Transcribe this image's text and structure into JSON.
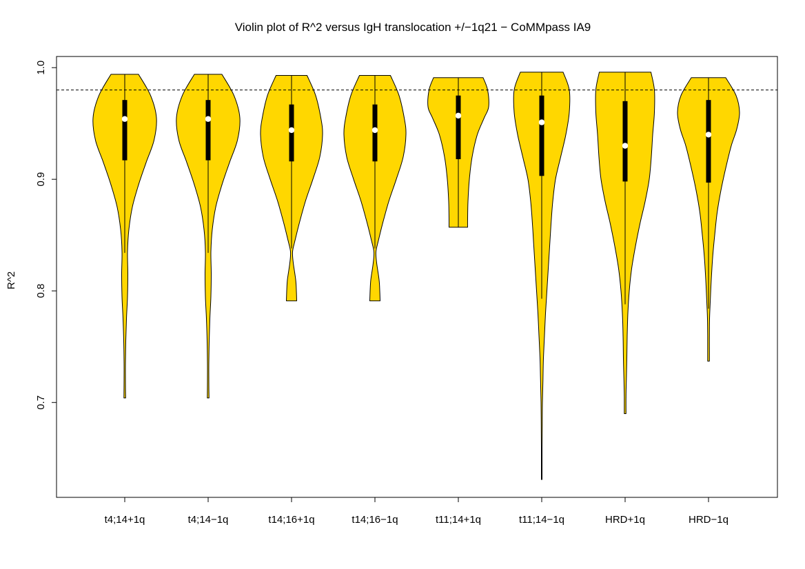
{
  "chart_data": {
    "type": "violin",
    "title": "Violin plot of R^2 versus IgH translocation +/−1q21 − CoMMpass IA9",
    "xlabel": "",
    "ylabel": "R^2",
    "ylim": [
      0.615,
      1.01
    ],
    "yticks": [
      "0.7",
      "0.8",
      "0.9",
      "1.0"
    ],
    "reference_line": {
      "y": 0.98,
      "style": "dashed"
    },
    "fill_color": "#FFD700",
    "categories": [
      "t4;14+1q",
      "t4;14−1q",
      "t14;16+1q",
      "t14;16−1q",
      "t11;14+1q",
      "t11;14−1q",
      "HRD+1q",
      "HRD−1q"
    ],
    "series": [
      {
        "min": 0.704,
        "max": 0.994,
        "whisker_low": 0.834,
        "q1": 0.917,
        "median": 0.954,
        "q3": 0.971,
        "profile": [
          [
            0.994,
            0.4
          ],
          [
            0.975,
            0.75
          ],
          [
            0.955,
            0.92
          ],
          [
            0.935,
            0.85
          ],
          [
            0.915,
            0.62
          ],
          [
            0.895,
            0.4
          ],
          [
            0.875,
            0.22
          ],
          [
            0.855,
            0.12
          ],
          [
            0.835,
            0.08
          ],
          [
            0.815,
            0.09
          ],
          [
            0.795,
            0.08
          ],
          [
            0.775,
            0.05
          ],
          [
            0.755,
            0.03
          ],
          [
            0.735,
            0.02
          ],
          [
            0.72,
            0.02
          ],
          [
            0.704,
            0.025
          ]
        ]
      },
      {
        "min": 0.704,
        "max": 0.994,
        "whisker_low": 0.834,
        "q1": 0.917,
        "median": 0.954,
        "q3": 0.971,
        "profile": [
          [
            0.994,
            0.4
          ],
          [
            0.975,
            0.75
          ],
          [
            0.955,
            0.92
          ],
          [
            0.935,
            0.85
          ],
          [
            0.915,
            0.62
          ],
          [
            0.895,
            0.4
          ],
          [
            0.875,
            0.22
          ],
          [
            0.855,
            0.12
          ],
          [
            0.835,
            0.08
          ],
          [
            0.815,
            0.09
          ],
          [
            0.795,
            0.08
          ],
          [
            0.775,
            0.05
          ],
          [
            0.755,
            0.03
          ],
          [
            0.735,
            0.02
          ],
          [
            0.72,
            0.02
          ],
          [
            0.704,
            0.025
          ]
        ]
      },
      {
        "min": 0.791,
        "max": 0.993,
        "whisker_low": 0.838,
        "q1": 0.916,
        "median": 0.944,
        "q3": 0.967,
        "profile": [
          [
            0.993,
            0.45
          ],
          [
            0.975,
            0.7
          ],
          [
            0.955,
            0.85
          ],
          [
            0.94,
            0.9
          ],
          [
            0.92,
            0.82
          ],
          [
            0.9,
            0.62
          ],
          [
            0.88,
            0.4
          ],
          [
            0.86,
            0.22
          ],
          [
            0.845,
            0.1
          ],
          [
            0.835,
            0.03
          ],
          [
            0.825,
            0.05
          ],
          [
            0.81,
            0.12
          ],
          [
            0.8,
            0.14
          ],
          [
            0.791,
            0.15
          ]
        ]
      },
      {
        "min": 0.791,
        "max": 0.993,
        "whisker_low": 0.838,
        "q1": 0.916,
        "median": 0.944,
        "q3": 0.967,
        "profile": [
          [
            0.993,
            0.45
          ],
          [
            0.975,
            0.7
          ],
          [
            0.955,
            0.85
          ],
          [
            0.94,
            0.9
          ],
          [
            0.92,
            0.82
          ],
          [
            0.9,
            0.62
          ],
          [
            0.88,
            0.4
          ],
          [
            0.86,
            0.22
          ],
          [
            0.845,
            0.1
          ],
          [
            0.835,
            0.03
          ],
          [
            0.825,
            0.05
          ],
          [
            0.81,
            0.12
          ],
          [
            0.8,
            0.14
          ],
          [
            0.791,
            0.15
          ]
        ]
      },
      {
        "min": 0.857,
        "max": 0.991,
        "whisker_low": 0.857,
        "q1": 0.918,
        "median": 0.957,
        "q3": 0.975,
        "profile": [
          [
            0.991,
            0.72
          ],
          [
            0.98,
            0.85
          ],
          [
            0.965,
            0.88
          ],
          [
            0.955,
            0.75
          ],
          [
            0.94,
            0.55
          ],
          [
            0.92,
            0.4
          ],
          [
            0.9,
            0.32
          ],
          [
            0.88,
            0.28
          ],
          [
            0.865,
            0.27
          ],
          [
            0.857,
            0.27
          ]
        ]
      },
      {
        "min": 0.631,
        "max": 0.996,
        "whisker_low": 0.793,
        "q1": 0.903,
        "median": 0.951,
        "q3": 0.975,
        "profile": [
          [
            0.996,
            0.62
          ],
          [
            0.98,
            0.8
          ],
          [
            0.96,
            0.8
          ],
          [
            0.94,
            0.7
          ],
          [
            0.92,
            0.55
          ],
          [
            0.9,
            0.4
          ],
          [
            0.88,
            0.32
          ],
          [
            0.86,
            0.27
          ],
          [
            0.84,
            0.23
          ],
          [
            0.82,
            0.19
          ],
          [
            0.8,
            0.15
          ],
          [
            0.78,
            0.11
          ],
          [
            0.76,
            0.08
          ],
          [
            0.74,
            0.05
          ],
          [
            0.72,
            0.035
          ],
          [
            0.7,
            0.02
          ],
          [
            0.68,
            0.015
          ],
          [
            0.66,
            0.01
          ],
          [
            0.645,
            0.01
          ],
          [
            0.631,
            0.01
          ]
        ]
      },
      {
        "min": 0.69,
        "max": 0.996,
        "whisker_low": 0.788,
        "q1": 0.898,
        "median": 0.93,
        "q3": 0.97,
        "profile": [
          [
            0.996,
            0.75
          ],
          [
            0.98,
            0.85
          ],
          [
            0.96,
            0.85
          ],
          [
            0.94,
            0.8
          ],
          [
            0.92,
            0.76
          ],
          [
            0.9,
            0.7
          ],
          [
            0.88,
            0.58
          ],
          [
            0.86,
            0.43
          ],
          [
            0.84,
            0.3
          ],
          [
            0.82,
            0.19
          ],
          [
            0.8,
            0.12
          ],
          [
            0.78,
            0.08
          ],
          [
            0.76,
            0.06
          ],
          [
            0.74,
            0.05
          ],
          [
            0.72,
            0.035
          ],
          [
            0.705,
            0.025
          ],
          [
            0.69,
            0.025
          ]
        ]
      },
      {
        "min": 0.737,
        "max": 0.991,
        "whisker_low": 0.784,
        "q1": 0.897,
        "median": 0.94,
        "q3": 0.971,
        "profile": [
          [
            0.991,
            0.5
          ],
          [
            0.975,
            0.8
          ],
          [
            0.96,
            0.9
          ],
          [
            0.945,
            0.82
          ],
          [
            0.93,
            0.66
          ],
          [
            0.91,
            0.5
          ],
          [
            0.89,
            0.36
          ],
          [
            0.87,
            0.25
          ],
          [
            0.85,
            0.18
          ],
          [
            0.83,
            0.12
          ],
          [
            0.81,
            0.08
          ],
          [
            0.79,
            0.05
          ],
          [
            0.775,
            0.03
          ],
          [
            0.76,
            0.025
          ],
          [
            0.745,
            0.025
          ],
          [
            0.737,
            0.025
          ]
        ]
      }
    ]
  }
}
